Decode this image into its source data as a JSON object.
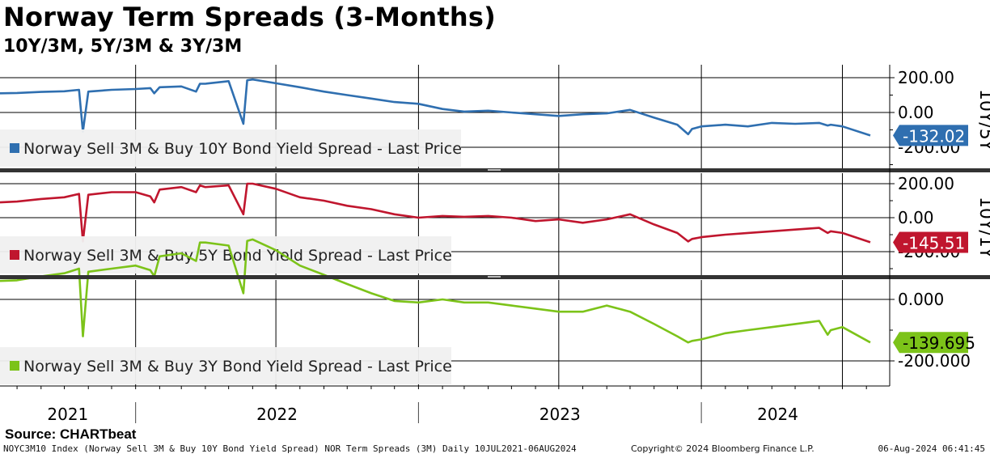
{
  "title": "Norway Term Spreads (3-Months)",
  "subtitle": "10Y/3M, 5Y/3M & 3Y/3M",
  "source": "Source: CHARTbeat",
  "footer": {
    "left": "NOYC3M10 Index (Norway Sell 3M & Buy 10Y Bond Yield Spread) NOR Term Spreads (3M)  Daily 10JUL2021-06AUG2024",
    "middle": "Copyright© 2024 Bloomberg Finance L.P.",
    "right": "06-Aug-2024 06:41:45"
  },
  "chart_data": {
    "type": "line",
    "x_labels": [
      "2021",
      "2022",
      "2023",
      "2024"
    ],
    "x_range": [
      "2021-07-10",
      "2024-08-06"
    ],
    "x": [
      "2021-07-10",
      "2021-08-01",
      "2021-09-01",
      "2021-10-01",
      "2021-10-20",
      "2021-10-25",
      "2021-11-01",
      "2021-12-01",
      "2022-01-01",
      "2022-01-20",
      "2022-01-25",
      "2022-02-01",
      "2022-03-01",
      "2022-03-20",
      "2022-03-25",
      "2022-04-01",
      "2022-05-01",
      "2022-05-20",
      "2022-05-25",
      "2022-06-01",
      "2022-07-01",
      "2022-08-01",
      "2022-09-01",
      "2022-10-01",
      "2022-11-01",
      "2022-12-01",
      "2023-01-01",
      "2023-02-01",
      "2023-03-01",
      "2023-04-01",
      "2023-05-01",
      "2023-06-01",
      "2023-07-01",
      "2023-08-01",
      "2023-09-01",
      "2023-10-01",
      "2023-11-01",
      "2023-12-01",
      "2023-12-15",
      "2023-12-20",
      "2024-01-01",
      "2024-02-01",
      "2024-03-01",
      "2024-04-01",
      "2024-05-01",
      "2024-06-01",
      "2024-06-12",
      "2024-06-16",
      "2024-07-01",
      "2024-08-06"
    ],
    "panels": [
      {
        "side_label": "10Y/5Y",
        "y_ticks": [
          "200.00",
          "0.00",
          "-200.00"
        ],
        "ylim": [
          -300,
          240
        ],
        "last_value_label": "-132.02",
        "color": "#2f6fb0",
        "series": [
          {
            "name": "Norway Sell 3M & Buy 10Y Bond Yield Spread - Last Price",
            "values": [
              110,
              112,
              118,
              122,
              130,
              -110,
              120,
              130,
              135,
              140,
              110,
              145,
              150,
              120,
              165,
              165,
              180,
              -65,
              185,
              190,
              168,
              145,
              120,
              100,
              80,
              60,
              50,
              20,
              5,
              10,
              0,
              -10,
              -20,
              -10,
              -5,
              15,
              -30,
              -70,
              -125,
              -95,
              -80,
              -70,
              -80,
              -60,
              -65,
              -60,
              -75,
              -70,
              -80,
              -132
            ]
          }
        ]
      },
      {
        "side_label": "10Y/1Y",
        "y_ticks": [
          "200.00",
          "0.00",
          "-200.00"
        ],
        "ylim": [
          -300,
          240
        ],
        "last_value_label": "-145.51",
        "color": "#c0162e",
        "series": [
          {
            "name": "Norway Sell 3M & Buy 5Y Bond Yield Spread - Last Price",
            "values": [
              90,
              95,
              110,
              120,
              140,
              -140,
              135,
              150,
              150,
              125,
              90,
              165,
              180,
              150,
              190,
              180,
              190,
              20,
              200,
              200,
              170,
              120,
              100,
              70,
              50,
              20,
              0,
              10,
              5,
              10,
              0,
              -20,
              -10,
              -30,
              -10,
              20,
              -40,
              -90,
              -140,
              -125,
              -115,
              -100,
              -90,
              -80,
              -70,
              -60,
              -90,
              -80,
              -90,
              -145
            ]
          }
        ]
      },
      {
        "side_label": "",
        "y_ticks": [
          "0.000",
          "-200.000"
        ],
        "ylim": [
          -320,
          240
        ],
        "last_value_label": "-139.695",
        "color": "#7cc319",
        "series": [
          {
            "name": "Norway Sell 3M & Buy 3Y Bond Yield Spread - Last Price",
            "values": [
              60,
              62,
              75,
              85,
              100,
              -120,
              90,
              100,
              110,
              95,
              75,
              140,
              150,
              125,
              185,
              185,
              175,
              20,
              190,
              195,
              160,
              110,
              80,
              50,
              20,
              -5,
              -10,
              0,
              -10,
              -10,
              -20,
              -30,
              -40,
              -40,
              -20,
              -40,
              -80,
              -120,
              -140,
              -135,
              -130,
              -110,
              -100,
              -90,
              -80,
              -70,
              -115,
              -100,
              -90,
              -140
            ]
          }
        ]
      }
    ]
  }
}
